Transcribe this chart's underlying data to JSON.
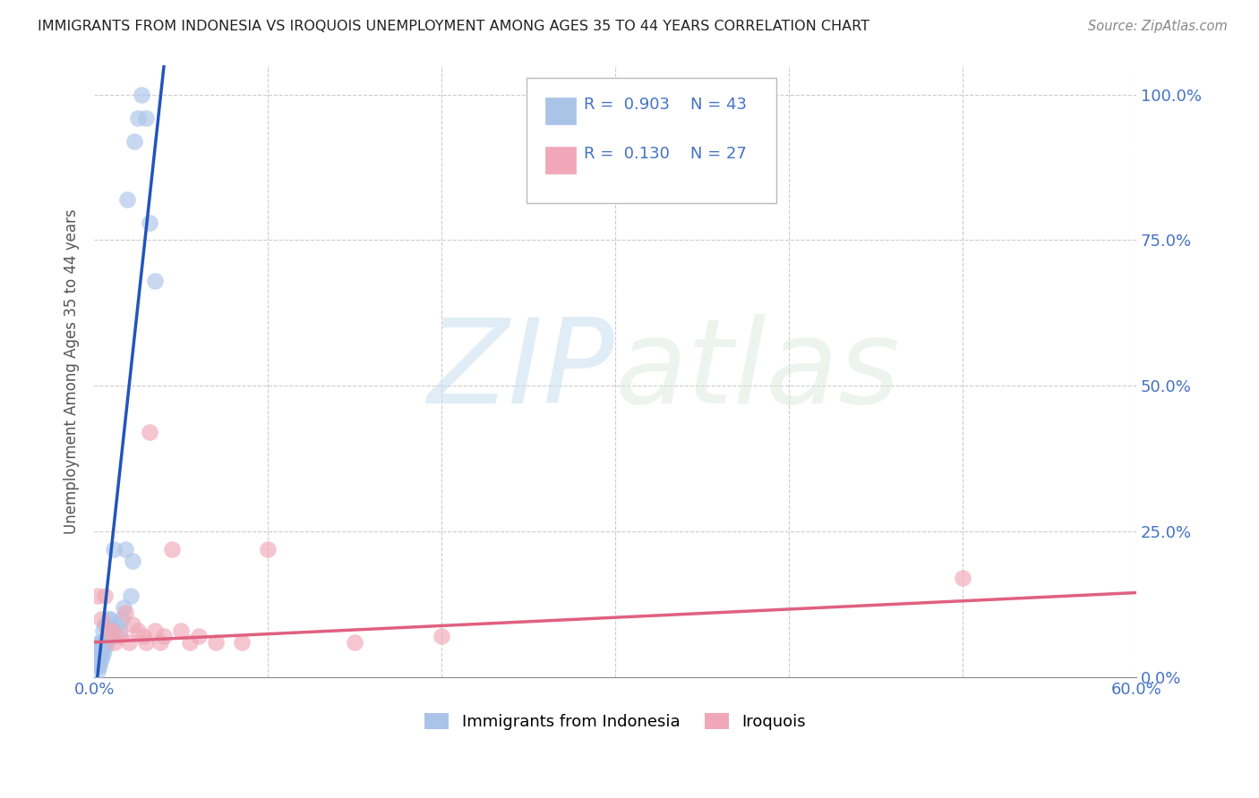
{
  "title": "IMMIGRANTS FROM INDONESIA VS IROQUOIS UNEMPLOYMENT AMONG AGES 35 TO 44 YEARS CORRELATION CHART",
  "source": "Source: ZipAtlas.com",
  "ylabel": "Unemployment Among Ages 35 to 44 years",
  "legend_blue_R": "0.903",
  "legend_blue_N": "43",
  "legend_pink_R": "0.130",
  "legend_pink_N": "27",
  "watermark_zip": "ZIP",
  "watermark_atlas": "atlas",
  "blue_color": "#aac4e8",
  "blue_line_color": "#2255bb",
  "pink_color": "#f0a8b8",
  "pink_line_color": "#e06080",
  "axis_tick_color": "#4472c4",
  "xmin": 0.0,
  "xmax": 0.6,
  "ymin": 0.0,
  "ymax": 1.05,
  "yticks": [
    0.0,
    0.25,
    0.5,
    0.75,
    1.0
  ],
  "ytick_labels": [
    "0.0%",
    "25.0%",
    "50.0%",
    "75.0%",
    "100.0%"
  ],
  "xtick_labels": [
    "0.0%",
    "",
    "",
    "",
    "",
    "",
    "60.0%"
  ],
  "blue_points_x": [
    0.002,
    0.002,
    0.002,
    0.002,
    0.003,
    0.003,
    0.003,
    0.003,
    0.003,
    0.004,
    0.004,
    0.004,
    0.004,
    0.005,
    0.005,
    0.005,
    0.005,
    0.006,
    0.006,
    0.006,
    0.007,
    0.007,
    0.008,
    0.008,
    0.009,
    0.009,
    0.01,
    0.011,
    0.012,
    0.013,
    0.015,
    0.016,
    0.017,
    0.018,
    0.019,
    0.021,
    0.022,
    0.023,
    0.025,
    0.027,
    0.03,
    0.032,
    0.035
  ],
  "blue_points_y": [
    0.01,
    0.02,
    0.03,
    0.04,
    0.02,
    0.03,
    0.04,
    0.05,
    0.06,
    0.03,
    0.04,
    0.05,
    0.06,
    0.04,
    0.05,
    0.06,
    0.08,
    0.05,
    0.06,
    0.09,
    0.06,
    0.09,
    0.07,
    0.1,
    0.07,
    0.1,
    0.08,
    0.22,
    0.07,
    0.09,
    0.08,
    0.1,
    0.12,
    0.22,
    0.82,
    0.14,
    0.2,
    0.92,
    0.96,
    1.0,
    0.96,
    0.78,
    0.68
  ],
  "blue_line_x": [
    0.0,
    0.042
  ],
  "blue_line_y": [
    -0.05,
    1.1
  ],
  "pink_points_x": [
    0.002,
    0.004,
    0.006,
    0.008,
    0.01,
    0.012,
    0.015,
    0.018,
    0.02,
    0.022,
    0.025,
    0.028,
    0.03,
    0.032,
    0.035,
    0.038,
    0.04,
    0.045,
    0.05,
    0.055,
    0.06,
    0.07,
    0.085,
    0.1,
    0.15,
    0.2,
    0.5
  ],
  "pink_points_y": [
    0.14,
    0.1,
    0.14,
    0.08,
    0.08,
    0.06,
    0.07,
    0.11,
    0.06,
    0.09,
    0.08,
    0.07,
    0.06,
    0.42,
    0.08,
    0.06,
    0.07,
    0.22,
    0.08,
    0.06,
    0.07,
    0.06,
    0.06,
    0.22,
    0.06,
    0.07,
    0.17
  ],
  "pink_line_x": [
    0.0,
    0.6
  ],
  "pink_line_y": [
    0.06,
    0.145
  ]
}
